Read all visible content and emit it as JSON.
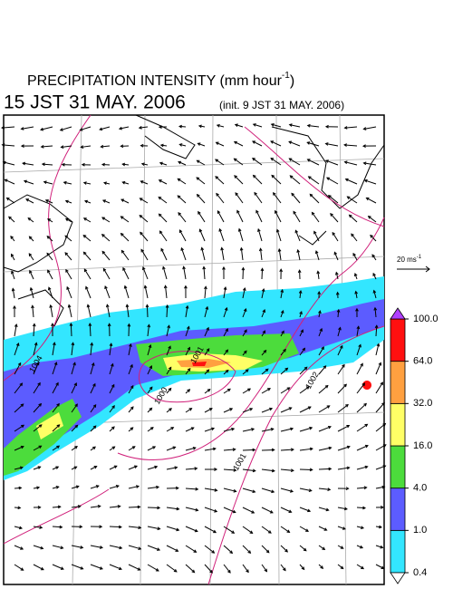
{
  "header": {
    "title": "PRECIPITATION INTENSITY (mm hour",
    "title_exponent": "-1",
    "title_close": ")",
    "valid_time": "15 JST 31 MAY. 2006",
    "init_time": "(init. 9 JST 31 MAY. 2006)"
  },
  "wind_reference": {
    "label": "20 ms",
    "exponent": "-1"
  },
  "isobar_labels": [
    {
      "value": 1004,
      "label": "1004"
    },
    {
      "value": 1001,
      "label": "1001"
    },
    {
      "value": 1000,
      "label": "1000"
    },
    {
      "value": 1002,
      "label": "1002"
    },
    {
      "value": 1001,
      "label": "1001"
    }
  ],
  "colorbar": {
    "levels": [
      {
        "value": 0.4,
        "label": "0.4"
      },
      {
        "value": 1,
        "label": "1.0"
      },
      {
        "value": 4,
        "label": "4.0"
      },
      {
        "value": 16,
        "label": "16.0"
      },
      {
        "value": 32,
        "label": "32.0"
      },
      {
        "value": 64,
        "label": "64.0"
      },
      {
        "value": 100,
        "label": "100.0"
      }
    ],
    "colors": [
      "#33e6ff",
      "#5c5cff",
      "#4cdc3c",
      "#ffff66",
      "#ffa040",
      "#ff1010"
    ],
    "over_color": "#b040ff",
    "under_color": "#ffffff"
  }
}
